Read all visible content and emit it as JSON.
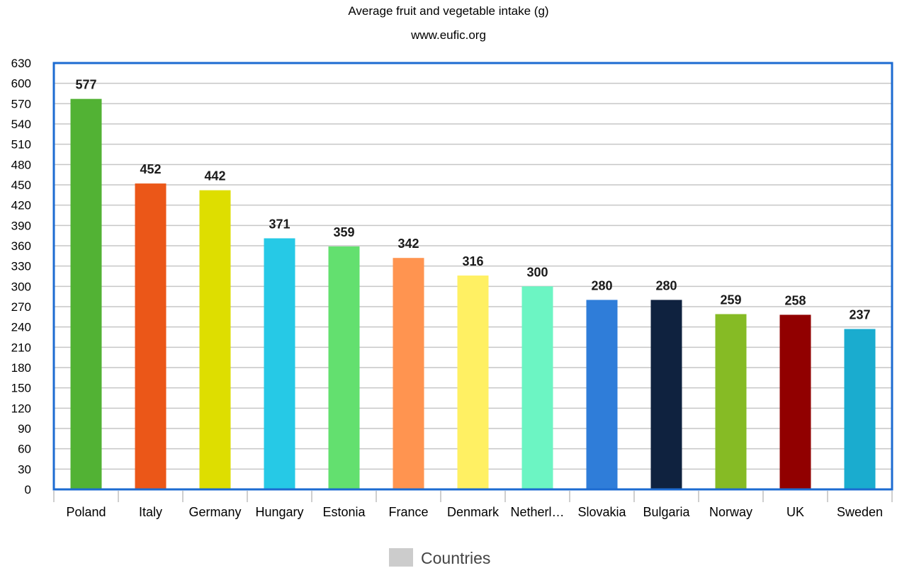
{
  "chart_data": {
    "type": "bar",
    "title": "Average fruit and vegetable intake (g)",
    "subtitle": "www.eufic.org",
    "xlabel": "",
    "ylabel": "",
    "ylim": [
      0,
      630
    ],
    "ytick_step": 30,
    "grid": true,
    "legend_position": "bottom",
    "categories": [
      "Poland",
      "Italy",
      "Germany",
      "Hungary",
      "Estonia",
      "France",
      "Denmark",
      "Netherl…",
      "Slovakia",
      "Bulgaria",
      "Norway",
      "UK",
      "Sweden"
    ],
    "series": [
      {
        "name": "Countries",
        "values": [
          577,
          452,
          442,
          371,
          359,
          342,
          316,
          300,
          280,
          280,
          259,
          258,
          237
        ]
      }
    ],
    "bar_colors": [
      "#52b234",
      "#eb5718",
      "#dede00",
      "#26c9e6",
      "#63e06f",
      "#ff9450",
      "#fff063",
      "#6cf5c3",
      "#2f7dd9",
      "#0f223f",
      "#86bb25",
      "#910000",
      "#1aaccf"
    ],
    "legend_swatch_color": "#cccccc",
    "plot_border_color": "#1c6bd1",
    "grid_color": "#c6c6c6"
  }
}
